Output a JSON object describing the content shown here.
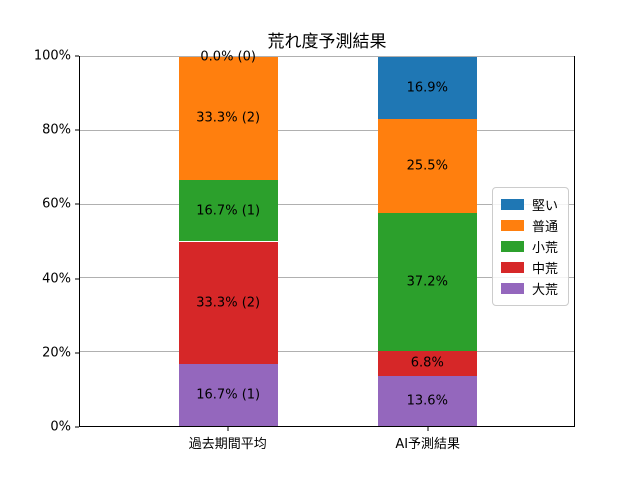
{
  "chart_data": {
    "type": "bar",
    "stacked": true,
    "title": "荒れ度予測結果",
    "categories": [
      "過去期間平均",
      "AI予測結果"
    ],
    "series": [
      {
        "name": "堅い",
        "color": "#1f77b4",
        "values": [
          0.0,
          16.9
        ],
        "labels": [
          "0.0% (0)",
          "16.9%"
        ]
      },
      {
        "name": "普通",
        "color": "#ff7f0e",
        "values": [
          33.3,
          25.5
        ],
        "labels": [
          "33.3% (2)",
          "25.5%"
        ]
      },
      {
        "name": "小荒",
        "color": "#2ca02c",
        "values": [
          16.7,
          37.2
        ],
        "labels": [
          "16.7% (1)",
          "37.2%"
        ]
      },
      {
        "name": "中荒",
        "color": "#d62728",
        "values": [
          33.3,
          6.8
        ],
        "labels": [
          "33.3% (2)",
          "6.8%"
        ]
      },
      {
        "name": "大荒",
        "color": "#9467bd",
        "values": [
          16.7,
          13.6
        ],
        "labels": [
          "16.7% (1)",
          "13.6%"
        ]
      }
    ],
    "stack_order": "top-to-bottom",
    "ylim": [
      0,
      100
    ],
    "y_ticks": [
      "0%",
      "20%",
      "40%",
      "60%",
      "80%",
      "100%"
    ],
    "grid": true,
    "grid_color": "#b0b0b0",
    "legend_position": "right",
    "layout": {
      "bar_centers_pct": [
        30.0,
        70.3
      ],
      "bar_width_pct": 20.0
    }
  }
}
